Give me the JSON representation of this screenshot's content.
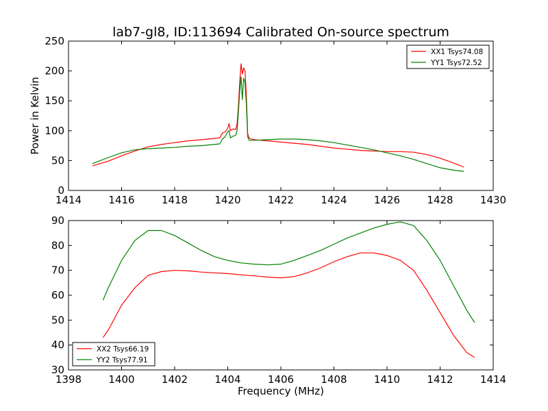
{
  "figure": {
    "title": "lab7-gl8, ID:113694 Calibrated On-source spectrum",
    "ylabel": "Power in Kelvin",
    "xlabel": "Frequency (MHz)"
  },
  "chart_data": [
    {
      "type": "line",
      "xlim": [
        1414,
        1430
      ],
      "ylim": [
        0,
        250
      ],
      "xticks": [
        1414,
        1416,
        1418,
        1420,
        1422,
        1424,
        1426,
        1428,
        1430
      ],
      "yticks": [
        0,
        50,
        100,
        150,
        200,
        250
      ],
      "legend_position": "top-right",
      "series": [
        {
          "name": "XX1 Tsys74.08",
          "color": "#ff0000",
          "x": [
            1414.9,
            1415.5,
            1416.0,
            1416.5,
            1417.0,
            1417.5,
            1418.0,
            1418.5,
            1419.0,
            1419.5,
            1419.7,
            1419.8,
            1419.9,
            1420.0,
            1420.05,
            1420.1,
            1420.2,
            1420.3,
            1420.35,
            1420.4,
            1420.45,
            1420.5,
            1420.55,
            1420.6,
            1420.65,
            1420.7,
            1420.75,
            1420.8,
            1420.9,
            1421.0,
            1421.5,
            1422.0,
            1422.5,
            1423.0,
            1423.5,
            1424.0,
            1424.5,
            1425.0,
            1425.5,
            1426.0,
            1426.5,
            1427.0,
            1427.5,
            1428.0,
            1428.5,
            1428.9
          ],
          "y": [
            41,
            49,
            58,
            66,
            73,
            77,
            80,
            83,
            85,
            87,
            88,
            96,
            98,
            104,
            112,
            100,
            103,
            102,
            112,
            140,
            180,
            212,
            195,
            205,
            200,
            160,
            95,
            88,
            86,
            85,
            83,
            81,
            79,
            77,
            74,
            71,
            69,
            67,
            66,
            65,
            65,
            64,
            60,
            54,
            46,
            39
          ]
        },
        {
          "name": "YY1 Tsys72.52",
          "color": "#008000",
          "x": [
            1414.9,
            1415.5,
            1416.0,
            1416.5,
            1417.0,
            1417.5,
            1418.0,
            1418.5,
            1419.0,
            1419.5,
            1419.7,
            1419.8,
            1419.9,
            1420.0,
            1420.05,
            1420.1,
            1420.2,
            1420.3,
            1420.35,
            1420.4,
            1420.45,
            1420.5,
            1420.55,
            1420.6,
            1420.65,
            1420.7,
            1420.75,
            1420.8,
            1420.9,
            1421.0,
            1421.5,
            1422.0,
            1422.5,
            1423.0,
            1423.5,
            1424.0,
            1424.5,
            1425.0,
            1425.5,
            1426.0,
            1426.5,
            1427.0,
            1427.5,
            1428.0,
            1428.5,
            1428.9
          ],
          "y": [
            45,
            55,
            63,
            68,
            70,
            71,
            72,
            74,
            75,
            77,
            78,
            86,
            90,
            98,
            100,
            88,
            91,
            92,
            100,
            130,
            165,
            190,
            152,
            188,
            180,
            145,
            90,
            84,
            84,
            84,
            85,
            86,
            86,
            85,
            83,
            80,
            76,
            72,
            68,
            63,
            58,
            52,
            45,
            38,
            34,
            32
          ]
        }
      ]
    },
    {
      "type": "line",
      "xlim": [
        1398,
        1414
      ],
      "ylim": [
        30,
        90
      ],
      "xticks": [
        1398,
        1400,
        1402,
        1404,
        1406,
        1408,
        1410,
        1412,
        1414
      ],
      "yticks": [
        30,
        40,
        50,
        60,
        70,
        80,
        90
      ],
      "legend_position": "bottom-left",
      "series": [
        {
          "name": "XX2 Tsys66.19",
          "color": "#ff0000",
          "x": [
            1399.3,
            1399.5,
            1400.0,
            1400.5,
            1401.0,
            1401.5,
            1402.0,
            1402.5,
            1403.0,
            1403.5,
            1404.0,
            1404.5,
            1405.0,
            1405.5,
            1406.0,
            1406.5,
            1407.0,
            1407.5,
            1408.0,
            1408.5,
            1409.0,
            1409.5,
            1410.0,
            1410.5,
            1411.0,
            1411.5,
            1412.0,
            1412.5,
            1413.0,
            1413.3
          ],
          "y": [
            43,
            46,
            56,
            63,
            68,
            69.5,
            70,
            69.8,
            69.3,
            69,
            68.7,
            68.2,
            67.8,
            67.3,
            67,
            67.5,
            69,
            71,
            73.5,
            75.5,
            77,
            77,
            76,
            74,
            70,
            62,
            53,
            44,
            37,
            35
          ]
        },
        {
          "name": "YY2 Tsys77.91",
          "color": "#008000",
          "x": [
            1399.3,
            1399.5,
            1400.0,
            1400.5,
            1401.0,
            1401.5,
            1402.0,
            1402.5,
            1403.0,
            1403.5,
            1404.0,
            1404.5,
            1405.0,
            1405.5,
            1406.0,
            1406.5,
            1407.0,
            1407.5,
            1408.0,
            1408.5,
            1409.0,
            1409.5,
            1410.0,
            1410.5,
            1411.0,
            1411.5,
            1412.0,
            1412.5,
            1413.0,
            1413.3
          ],
          "y": [
            58,
            63,
            74,
            82,
            86,
            86,
            84,
            81,
            78,
            75.5,
            74,
            73,
            72.5,
            72.2,
            72.5,
            74,
            76,
            78,
            80.5,
            83,
            85,
            87,
            88.5,
            89.5,
            88,
            82,
            74,
            64,
            54,
            49
          ]
        }
      ]
    }
  ]
}
